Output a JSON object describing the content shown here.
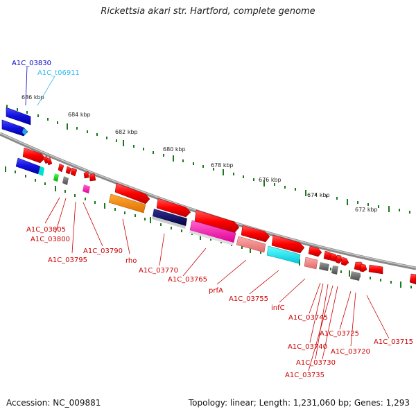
{
  "title": "Rickettsia akari str. Hartford, complete genome",
  "footer": {
    "accession": "Accession: NC_009881",
    "summary": "Topology: linear; Length: 1,231,060 bp; Genes: 1,293"
  },
  "ruler": [
    "686 kbp",
    "684 kbp",
    "682 kbp",
    "680 kbp",
    "678 kbp",
    "676 kbp",
    "674 kbp",
    "672 kbp"
  ],
  "top_labels": [
    "A1C_03830",
    "A1C_t06911"
  ],
  "gene_labels": [
    "A1C_03805",
    "A1C_03800",
    "A1C_03795",
    "A1C_03790",
    "rho",
    "A1C_03770",
    "A1C_03765",
    "prfA",
    "A1C_03755",
    "infC",
    "A1C_03745",
    "A1C_03740",
    "A1C_03730",
    "A1C_03735",
    "A1C_03725",
    "A1C_03720",
    "A1C_03715"
  ],
  "colors": {
    "forward_gene": "#ff0000",
    "label_red": "#cc0000",
    "label_blue": "#0000cc",
    "label_cyan": "#33bbee",
    "backbone": "#999999",
    "tick": "#1a7a1a"
  }
}
